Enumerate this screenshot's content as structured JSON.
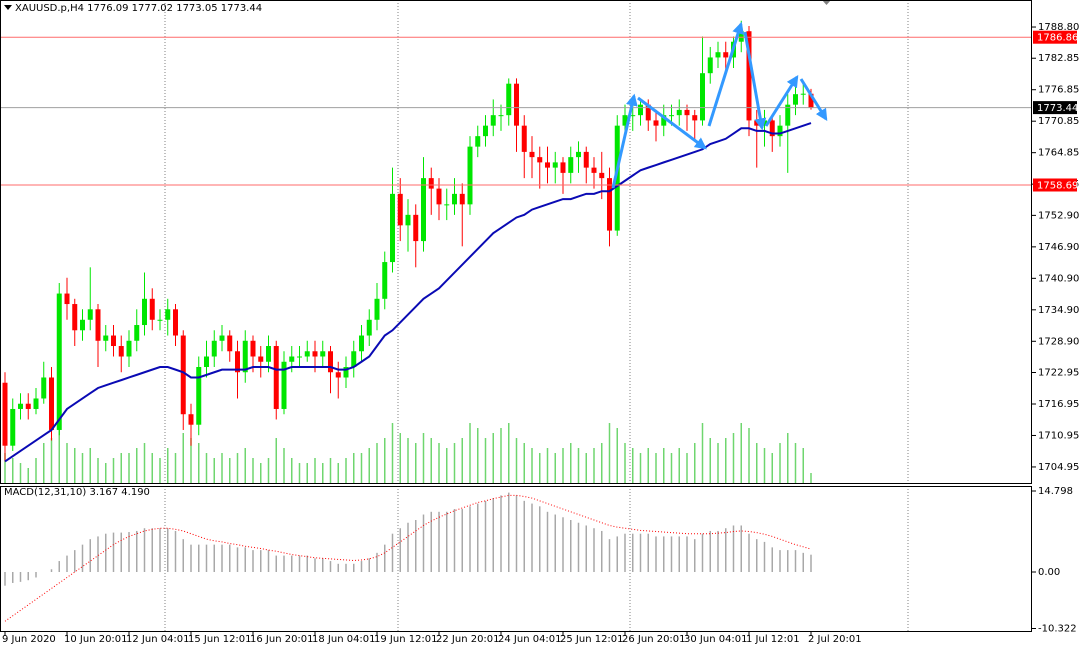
{
  "chart_data": [
    {
      "type": "candlestick",
      "title": "XAUUSD.p,H4  1776.09 1777.02 1773.05 1773.44",
      "categories": [
        "9 Jun 2020",
        null,
        null,
        null,
        null,
        null,
        null,
        null,
        "10 Jun 20:01",
        null,
        null,
        null,
        null,
        null,
        null,
        null,
        "12 Jun 04:01",
        null,
        null,
        null,
        null,
        null,
        null,
        null,
        "15 Jun 12:01",
        null,
        null,
        null,
        null,
        null,
        null,
        null,
        "16 Jun 20:01",
        null,
        null,
        null,
        null,
        null,
        null,
        null,
        "18 Jun 04:01",
        null,
        null,
        null,
        null,
        null,
        null,
        null,
        "19 Jun 12:01",
        null,
        null,
        null,
        null,
        null,
        null,
        null,
        "22 Jun 20:01",
        null,
        null,
        null,
        null,
        null,
        null,
        null,
        "24 Jun 04:01",
        null,
        null,
        null,
        null,
        null,
        null,
        null,
        "25 Jun 12:01",
        null,
        null,
        null,
        null,
        null,
        null,
        null,
        "26 Jun 20:01",
        null,
        null,
        null,
        null,
        null,
        null,
        null,
        "30 Jun 04:01",
        null,
        null,
        null,
        null,
        null,
        null,
        null,
        "1 Jul 12:01",
        null,
        null,
        null,
        null,
        null,
        null,
        null,
        "2 Jul 20:01"
      ],
      "open": [
        1721,
        1709,
        1716,
        1717,
        1716,
        1718,
        1722,
        1712,
        1738,
        1736,
        1731,
        1733,
        1735,
        1729,
        1730,
        1728,
        1726,
        1729,
        1732,
        1737,
        1733,
        1733,
        1735,
        1730,
        1715,
        1713,
        1724,
        1726,
        1729,
        1730,
        1727,
        1723,
        1729,
        1726,
        1725,
        1728,
        1716,
        1725,
        1726,
        1726,
        1727,
        1726,
        1727,
        1723,
        1722,
        1724,
        1727,
        1730,
        1733,
        1737,
        1744,
        1757,
        1751,
        1753,
        1748,
        1760,
        1758,
        1755,
        1755,
        1757,
        1755,
        1766,
        1768,
        1770,
        1772,
        1772,
        1778,
        1770,
        1765,
        1764,
        1763,
        1762,
        1763,
        1761,
        1764,
        1765,
        1762,
        1761,
        1760,
        1750,
        1770,
        1772,
        1772,
        1774,
        1771,
        1770,
        1772,
        1772,
        1773,
        1772,
        1771,
        1780,
        1783,
        1784,
        1783,
        1786,
        1788,
        1771,
        1770,
        1771,
        1768,
        1770,
        1774,
        1776,
        1776.09
      ],
      "high": [
        1723,
        1718,
        1719,
        1719,
        1720,
        1725,
        1724,
        1740,
        1741,
        1737,
        1735,
        1743,
        1736,
        1732,
        1732,
        1730,
        1731,
        1735,
        1742,
        1739,
        1735,
        1737,
        1736,
        1731,
        1717,
        1726,
        1729,
        1731,
        1732,
        1731,
        1729,
        1731,
        1730,
        1728,
        1730,
        1729,
        1727,
        1728,
        1728,
        1729,
        1729,
        1729,
        1728,
        1725,
        1726,
        1729,
        1732,
        1735,
        1740,
        1746,
        1762,
        1760,
        1756,
        1755,
        1764,
        1762,
        1760,
        1758,
        1760,
        1759,
        1768,
        1770,
        1772,
        1775,
        1774,
        1779,
        1779,
        1772,
        1768,
        1766,
        1766,
        1765,
        1764,
        1766,
        1767,
        1766,
        1764,
        1765,
        1762,
        1772,
        1774,
        1774,
        1775,
        1775,
        1773,
        1774,
        1774,
        1775,
        1774,
        1773,
        1787,
        1785,
        1786,
        1786,
        1787,
        1790,
        1789,
        1773,
        1773,
        1772,
        1772,
        1776,
        1778,
        1778,
        1777.02
      ],
      "low": [
        1706,
        1708,
        1714,
        1714,
        1715,
        1717,
        1710,
        1711,
        1733,
        1728,
        1729,
        1731,
        1724,
        1727,
        1726,
        1723,
        1724,
        1727,
        1730,
        1731,
        1731,
        1730,
        1728,
        1712,
        1709,
        1711,
        1722,
        1724,
        1727,
        1725,
        1718,
        1721,
        1723,
        1722,
        1723,
        1714,
        1715,
        1723,
        1724,
        1725,
        1723,
        1724,
        1719,
        1718,
        1720,
        1722,
        1725,
        1728,
        1731,
        1735,
        1742,
        1748,
        1746,
        1743,
        1746,
        1753,
        1752,
        1752,
        1753,
        1747,
        1753,
        1764,
        1766,
        1768,
        1769,
        1770,
        1765,
        1760,
        1760,
        1758,
        1759,
        1759,
        1757,
        1759,
        1761,
        1759,
        1758,
        1756,
        1747,
        1749,
        1768,
        1769,
        1770,
        1769,
        1767,
        1768,
        1770,
        1770,
        1769,
        1767,
        1770,
        1778,
        1781,
        1780,
        1781,
        1784,
        1768,
        1762,
        1766,
        1765,
        1766,
        1761,
        1772,
        1774,
        1773.05
      ],
      "close": [
        1709,
        1716,
        1717,
        1716,
        1718,
        1722,
        1712,
        1738,
        1736,
        1731,
        1733,
        1735,
        1729,
        1730,
        1728,
        1726,
        1729,
        1732,
        1737,
        1733,
        1733,
        1735,
        1730,
        1715,
        1713,
        1724,
        1726,
        1729,
        1730,
        1727,
        1723,
        1729,
        1726,
        1725,
        1728,
        1716,
        1725,
        1726,
        1726,
        1727,
        1726,
        1727,
        1723,
        1722,
        1724,
        1727,
        1730,
        1733,
        1737,
        1744,
        1757,
        1751,
        1753,
        1748,
        1760,
        1758,
        1755,
        1755,
        1757,
        1755,
        1766,
        1768,
        1770,
        1772,
        1772,
        1778,
        1770,
        1765,
        1764,
        1763,
        1762,
        1763,
        1761,
        1764,
        1765,
        1762,
        1761,
        1760,
        1750,
        1770,
        1772,
        1772,
        1774,
        1771,
        1770,
        1772,
        1772,
        1773,
        1772,
        1771,
        1780,
        1783,
        1784,
        1783,
        1786,
        1788,
        1771,
        1770,
        1771,
        1768,
        1770,
        1774,
        1776,
        1776.09,
        1773.44
      ],
      "up_color": "#00e600",
      "down_color": "#ff0000",
      "volume": {
        "color": "#6fd66f",
        "values": [
          30,
          25,
          20,
          15,
          25,
          40,
          45,
          55,
          40,
          35,
          30,
          35,
          25,
          20,
          25,
          30,
          30,
          35,
          40,
          30,
          25,
          35,
          30,
          50,
          45,
          40,
          30,
          25,
          30,
          25,
          30,
          35,
          25,
          20,
          25,
          45,
          35,
          25,
          20,
          20,
          25,
          20,
          25,
          20,
          25,
          30,
          30,
          35,
          40,
          45,
          60,
          50,
          45,
          40,
          50,
          45,
          40,
          35,
          40,
          45,
          60,
          55,
          45,
          50,
          55,
          60,
          45,
          40,
          35,
          30,
          35,
          30,
          35,
          40,
          35,
          30,
          35,
          40,
          60,
          55,
          40,
          35,
          30,
          35,
          30,
          35,
          30,
          35,
          30,
          40,
          60,
          45,
          40,
          45,
          50,
          60,
          55,
          40,
          35,
          30,
          40,
          50,
          40,
          35,
          10
        ]
      },
      "ma": {
        "color": "#0a0ab4",
        "values": [
          1706,
          1707,
          1708,
          1709,
          1710,
          1711,
          1712,
          1714,
          1716,
          1717,
          1718,
          1719,
          1720,
          1720.5,
          1721,
          1721.5,
          1722,
          1722.5,
          1723,
          1723.5,
          1724,
          1724,
          1723.5,
          1723,
          1722,
          1722,
          1722.5,
          1723,
          1723.5,
          1723.5,
          1723.5,
          1723.5,
          1724,
          1724,
          1724,
          1723.5,
          1723.5,
          1724,
          1724,
          1724,
          1724,
          1724,
          1724,
          1723.5,
          1723.5,
          1724,
          1725,
          1726,
          1728,
          1730,
          1731,
          1732.5,
          1734,
          1735.5,
          1737,
          1738,
          1739,
          1740.5,
          1742,
          1743.5,
          1745,
          1746.5,
          1748,
          1749.5,
          1750.5,
          1751.5,
          1752.5,
          1753,
          1754,
          1754.5,
          1755,
          1755.5,
          1756,
          1756,
          1756.5,
          1757,
          1757,
          1757.5,
          1757.5,
          1758.5,
          1759.5,
          1760.5,
          1761.5,
          1762,
          1762.5,
          1763,
          1763.5,
          1764,
          1764.5,
          1765,
          1765.5,
          1766.5,
          1767,
          1767.5,
          1768.5,
          1769.5,
          1769.5,
          1769,
          1769,
          1768.5,
          1768.5,
          1769,
          1769.5,
          1770,
          1770.5
        ]
      },
      "price_lines": [
        {
          "value": 1786.86,
          "color": "#ff6b6b",
          "box_color": "#ff0000"
        },
        {
          "value": 1773.44,
          "color": "#a0a0a0",
          "box_color": "#000000"
        },
        {
          "value": 1758.69,
          "color": "#ff6b6b",
          "box_color": "#ff0000"
        }
      ],
      "ylim": [
        1701.7,
        1793.95
      ],
      "yticks": [
        {
          "value": 1788.8,
          "label": "1788.80"
        },
        1782.85,
        1776.85,
        1770.85,
        1764.85,
        1758.85,
        {
          "value": 1752.9,
          "label": "1752.90"
        },
        {
          "value": 1746.9,
          "label": "1746.90"
        },
        {
          "value": 1740.9,
          "label": "1740.90"
        },
        {
          "value": 1734.9,
          "label": "1734.90"
        },
        {
          "value": 1728.9,
          "label": "1728.90"
        },
        1722.95,
        1716.95,
        1710.95,
        1704.95
      ]
    },
    {
      "type": "macd",
      "title": "MACD(12,31,10) 3.167 4.190",
      "series": [
        {
          "color": "#a8a8a8",
          "values": [
            -2.5,
            -2,
            -1.8,
            -1.5,
            -1,
            0,
            0.5,
            2,
            3,
            4,
            5,
            6,
            6.5,
            7,
            7.2,
            7.2,
            7.3,
            7.5,
            8,
            8,
            8,
            8,
            7.5,
            6,
            5,
            5,
            5,
            5,
            5,
            5,
            4.5,
            4.5,
            4,
            4,
            4,
            3,
            3,
            3,
            3,
            3,
            2.5,
            2.5,
            2,
            1.5,
            1.5,
            1.5,
            2,
            2.5,
            3.5,
            5,
            7,
            8,
            9,
            9.5,
            10.5,
            11,
            11,
            11,
            11.5,
            11.5,
            12,
            12.5,
            13,
            13.5,
            14,
            14.5,
            14,
            13,
            12.5,
            12,
            11,
            10.5,
            10,
            9.5,
            9,
            8.5,
            8,
            7.5,
            6,
            6.5,
            7,
            7,
            7,
            7,
            6.5,
            6.5,
            6.5,
            6.5,
            6.5,
            6,
            7,
            7.5,
            7.5,
            8,
            8.5,
            8.5,
            7,
            6,
            5.5,
            4.5,
            4,
            4,
            4,
            3.5,
            3.167
          ]
        },
        {
          "color": "#ff0000",
          "values": [
            -9,
            -8,
            -7,
            -6,
            -5,
            -4,
            -3,
            -2,
            -1,
            0,
            1,
            2,
            3,
            4,
            5,
            5.8,
            6.5,
            7,
            7.5,
            7.8,
            8,
            8,
            7.8,
            7.5,
            7,
            6.5,
            6,
            5.7,
            5.5,
            5.2,
            5,
            4.7,
            4.5,
            4.3,
            4,
            3.8,
            3.5,
            3.2,
            3,
            2.8,
            2.6,
            2.5,
            2.4,
            2.3,
            2.2,
            2.1,
            2.2,
            2.4,
            2.8,
            3.5,
            4.5,
            5.5,
            6.5,
            7.5,
            8.5,
            9.3,
            10,
            10.6,
            11.2,
            11.7,
            12.2,
            12.7,
            13,
            13.4,
            13.7,
            14,
            14,
            13.8,
            13.5,
            13,
            12.5,
            12,
            11.5,
            11,
            10.5,
            10,
            9.5,
            9,
            8.5,
            8.2,
            8,
            7.8,
            7.6,
            7.5,
            7.4,
            7.3,
            7.2,
            7.1,
            7,
            7,
            7,
            7,
            7.1,
            7.2,
            7.4,
            7.5,
            7.4,
            7.2,
            6.9,
            6.5,
            6,
            5.5,
            5,
            4.6,
            4.19
          ]
        }
      ],
      "ylim": [
        -10.96,
        15.53
      ],
      "yticks": [
        14.798,
        {
          "value": 0,
          "label": "0.00"
        },
        -10.322
      ]
    }
  ]
}
